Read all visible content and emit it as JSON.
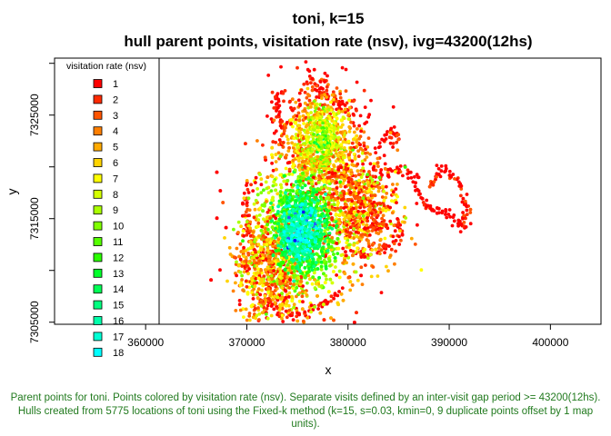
{
  "chart_data": {
    "type": "scatter",
    "title": "toni, k=15",
    "subtitle": "hull parent points, visitation rate (nsv), ivg=43200(12hs)",
    "xlabel": "x",
    "ylabel": "y",
    "xlim": [
      351000,
      405000
    ],
    "ylim": [
      7304800,
      7330500
    ],
    "xticks": [
      360000,
      370000,
      380000,
      390000,
      400000
    ],
    "xtick_labels": [
      "360000",
      "370000",
      "380000",
      "390000",
      "400000"
    ],
    "yticks": [
      7305000,
      7315000,
      7325000
    ],
    "ytick_labels": [
      "7305000",
      "7315000",
      "7325000"
    ],
    "grid": false,
    "legend": {
      "title": "visitation rate (nsv)",
      "placement": "top-left",
      "entries": [
        {
          "label": "1",
          "color": "#ff0000"
        },
        {
          "label": "2",
          "color": "#ff2a00"
        },
        {
          "label": "3",
          "color": "#ff5500"
        },
        {
          "label": "4",
          "color": "#ff7f00"
        },
        {
          "label": "5",
          "color": "#ffaa00"
        },
        {
          "label": "6",
          "color": "#ffd400"
        },
        {
          "label": "7",
          "color": "#ffff00"
        },
        {
          "label": "8",
          "color": "#d4ff00"
        },
        {
          "label": "9",
          "color": "#aaff00"
        },
        {
          "label": "10",
          "color": "#7fff00"
        },
        {
          "label": "11",
          "color": "#55ff00"
        },
        {
          "label": "12",
          "color": "#2aff00"
        },
        {
          "label": "13",
          "color": "#00ff2a"
        },
        {
          "label": "14",
          "color": "#00ff55"
        },
        {
          "label": "15",
          "color": "#00ff7f"
        },
        {
          "label": "16",
          "color": "#00ffaa"
        },
        {
          "label": "17",
          "color": "#00ffd4"
        },
        {
          "label": "18",
          "color": "#00ffff"
        }
      ]
    }
  },
  "caption": "Parent points for toni. Points colored by visitation rate (nsv). Separate visits defined by an inter-visit gap period >= 43200(12hs). Hulls created from 5775 locations of toni using the Fixed-k method (k=15, s=0.03, kmin=0, 9 duplicate points offset by 1 map units)."
}
